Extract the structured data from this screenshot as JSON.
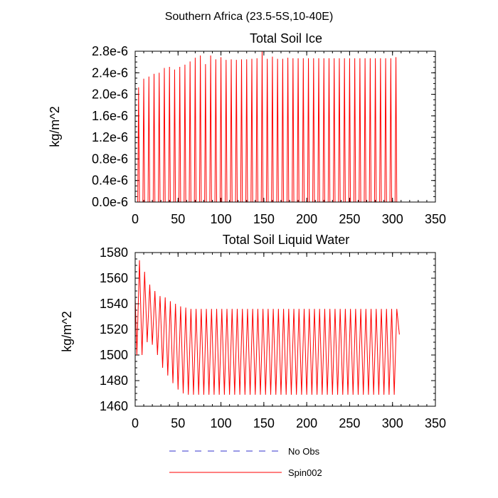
{
  "figure_title": "Southern Africa (23.5-5S,10-40E)",
  "chart_data": [
    {
      "type": "line",
      "title": "Total Soil Ice",
      "xlabel": "",
      "ylabel": "kg/m^2",
      "xlim": [
        0,
        350
      ],
      "ylim": [
        0,
        2.8e-06
      ],
      "x_ticks": [
        0,
        50,
        100,
        150,
        200,
        250,
        300,
        350
      ],
      "x_tick_labels": [
        "0",
        "50",
        "100",
        "150",
        "200",
        "250",
        "300",
        "350"
      ],
      "y_ticks": [
        0,
        4e-07,
        8e-07,
        1.2e-06,
        1.6e-06,
        2e-06,
        2.4e-06,
        2.8e-06
      ],
      "y_tick_labels": [
        "0.0e-6",
        "0.4e-6",
        "0.8e-6",
        "1.2e-6",
        "1.6e-6",
        "2.0e-6",
        "2.4e-6",
        "2.8e-6"
      ],
      "grid": false,
      "series": [
        {
          "name": "Spin002",
          "color": "#ff0000",
          "peak_months": [
            4,
            10,
            16,
            22,
            28,
            34,
            40,
            46,
            52,
            58,
            64,
            70,
            76,
            82,
            88,
            94,
            100,
            106,
            112,
            118,
            124,
            130,
            136,
            142,
            148,
            154,
            160,
            166,
            172,
            178,
            184,
            190,
            196,
            202,
            208,
            214,
            220,
            226,
            232,
            238,
            244,
            250,
            256,
            262,
            268,
            274,
            280,
            286,
            292,
            298,
            304
          ],
          "peak_values": [
            2.13e-06,
            2.29e-06,
            2.33e-06,
            2.38e-06,
            2.4e-06,
            2.49e-06,
            2.51e-06,
            2.46e-06,
            2.51e-06,
            2.55e-06,
            2.61e-06,
            2.68e-06,
            2.72e-06,
            2.56e-06,
            2.72e-06,
            2.65e-06,
            2.69e-06,
            2.64e-06,
            2.65e-06,
            2.64e-06,
            2.65e-06,
            2.65e-06,
            2.66e-06,
            2.67e-06,
            2.8e-06,
            2.66e-06,
            2.7e-06,
            2.66e-06,
            2.66e-06,
            2.68e-06,
            2.67e-06,
            2.67e-06,
            2.67e-06,
            2.67e-06,
            2.67e-06,
            2.67e-06,
            2.67e-06,
            2.67e-06,
            2.67e-06,
            2.67e-06,
            2.67e-06,
            2.67e-06,
            2.67e-06,
            2.67e-06,
            2.67e-06,
            2.67e-06,
            2.67e-06,
            2.67e-06,
            2.67e-06,
            2.67e-06,
            2.69e-06
          ],
          "base_value": 0
        }
      ]
    },
    {
      "type": "line",
      "title": "Total Soil Liquid Water",
      "xlabel": "",
      "ylabel": "kg/m^2",
      "xlim": [
        0,
        350
      ],
      "ylim": [
        1460,
        1580
      ],
      "x_ticks": [
        0,
        50,
        100,
        150,
        200,
        250,
        300,
        350
      ],
      "x_tick_labels": [
        "0",
        "50",
        "100",
        "150",
        "200",
        "250",
        "300",
        "350"
      ],
      "y_ticks": [
        1460,
        1480,
        1500,
        1520,
        1540,
        1560,
        1580
      ],
      "y_tick_labels": [
        "1460",
        "1480",
        "1500",
        "1520",
        "1540",
        "1560",
        "1580"
      ],
      "grid": false,
      "series": [
        {
          "name": "Spin002",
          "color": "#ff0000",
          "x": [
            0,
            2,
            5,
            8,
            11,
            14,
            17,
            20,
            23,
            26,
            29,
            32,
            35,
            38,
            41,
            44,
            47,
            50,
            53,
            56,
            59,
            62,
            65,
            68,
            71,
            74,
            77,
            80,
            83,
            86,
            89,
            92,
            95,
            98,
            101,
            104,
            107,
            110,
            113,
            116,
            119,
            122,
            125,
            128,
            131,
            134,
            137,
            140,
            143,
            146,
            149,
            152,
            155,
            158,
            161,
            164,
            167,
            170,
            173,
            176,
            179,
            182,
            185,
            188,
            191,
            194,
            197,
            200,
            203,
            206,
            209,
            212,
            215,
            218,
            221,
            224,
            227,
            230,
            233,
            236,
            239,
            242,
            245,
            248,
            251,
            254,
            257,
            260,
            263,
            266,
            269,
            272,
            275,
            278,
            281,
            284,
            287,
            290,
            293,
            296,
            299,
            302,
            305,
            308
          ],
          "y": [
            1545,
            1500,
            1574,
            1500,
            1565,
            1510,
            1555,
            1508,
            1550,
            1500,
            1546,
            1490,
            1545,
            1484,
            1542,
            1478,
            1540,
            1473,
            1538,
            1470,
            1537,
            1469,
            1536,
            1469,
            1536,
            1469,
            1536,
            1469,
            1536,
            1469,
            1536,
            1469,
            1536,
            1469,
            1536,
            1469,
            1536,
            1469,
            1536,
            1469,
            1536,
            1469,
            1536,
            1469,
            1536,
            1469,
            1536,
            1469,
            1536,
            1469,
            1536,
            1469,
            1536,
            1469,
            1536,
            1469,
            1536,
            1469,
            1536,
            1469,
            1536,
            1469,
            1536,
            1469,
            1536,
            1469,
            1536,
            1469,
            1536,
            1469,
            1536,
            1469,
            1536,
            1469,
            1536,
            1469,
            1536,
            1469,
            1536,
            1469,
            1536,
            1469,
            1536,
            1469,
            1536,
            1469,
            1536,
            1469,
            1536,
            1469,
            1536,
            1469,
            1536,
            1469,
            1536,
            1469,
            1536,
            1469,
            1536,
            1469,
            1536,
            1469,
            1536,
            1516
          ]
        }
      ]
    }
  ],
  "legend": {
    "placement": "bottom",
    "entries": [
      {
        "label": "No Obs",
        "color": "#3333cc",
        "style": "dashed"
      },
      {
        "label": "Spin002",
        "color": "#ff0000",
        "style": "solid"
      }
    ]
  }
}
